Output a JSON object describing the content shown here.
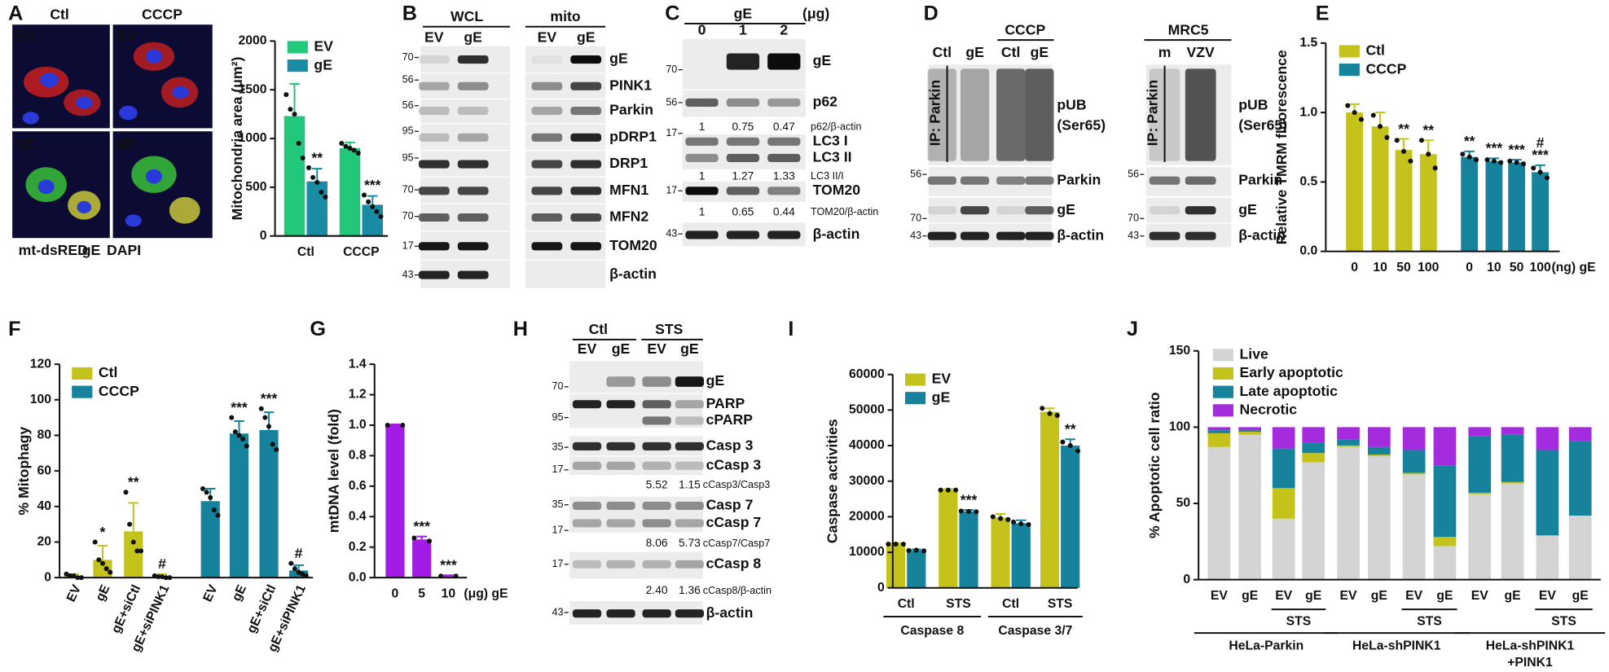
{
  "panel_labels": [
    "A",
    "B",
    "C",
    "D",
    "E",
    "F",
    "G",
    "H",
    "I",
    "J"
  ],
  "micrograph": {
    "columns": [
      "Ctl",
      "CCCP"
    ],
    "tiles": [
      "EV",
      "EV",
      "gE",
      "gE"
    ],
    "stain_legend": [
      "mt-dsRED",
      "gE",
      "DAPI"
    ]
  },
  "chart_data": [
    {
      "type": "bar",
      "ylabel": "Mitochondria area (μm²)",
      "categories": [
        "Ctl",
        "CCCP"
      ],
      "ylim": [
        0,
        2000
      ],
      "yticks": [
        0,
        500,
        1000,
        1500,
        2000
      ],
      "legend": "upper left",
      "series": [
        {
          "name": "EV",
          "color": "#21c77a",
          "values": [
            1230,
            900
          ],
          "errors": [
            330,
            60
          ],
          "points": [
            [
              1450,
              1300,
              1250,
              950,
              800
            ],
            [
              950,
              920,
              900,
              880,
              850
            ]
          ]
        },
        {
          "name": "gE",
          "color": "#1a8ba5",
          "values": [
            560,
            320
          ],
          "errors": [
            130,
            90
          ],
          "points": [
            [
              700,
              600,
              550,
              450,
              400
            ],
            [
              420,
              350,
              300,
              250,
              200
            ]
          ],
          "annotations": [
            "**",
            "***"
          ]
        }
      ]
    },
    {
      "type": "bar",
      "ylabel": "Relative TMRM fluorescence",
      "xlabel": "(ng) gE",
      "categories": [
        "0",
        "10",
        "50",
        "100",
        "0",
        "10",
        "50",
        "100"
      ],
      "ylim": [
        0,
        1.5
      ],
      "yticks": [
        {
          "value": 0,
          "label": "0.0"
        },
        {
          "value": 0.5,
          "label": "0.5"
        },
        {
          "value": 1,
          "label": "1.0"
        },
        {
          "value": 1.5,
          "label": "1.5"
        }
      ],
      "legend": "upper left",
      "series": [
        {
          "name": "Ctl",
          "color": "#c3c31b",
          "values": [
            1.0,
            0.9,
            0.73,
            0.7,
            null,
            null,
            null,
            null
          ],
          "errors": [
            0.06,
            0.1,
            0.08,
            0.1,
            null,
            null,
            null,
            null
          ],
          "points": [
            [
              1.05,
              1.0,
              0.95
            ],
            [
              0.98,
              0.9,
              0.82
            ],
            [
              0.8,
              0.72,
              0.65
            ],
            [
              0.8,
              0.7,
              0.6
            ],
            null,
            null,
            null,
            null
          ],
          "annotations": [
            null,
            null,
            "**",
            "**",
            null,
            null,
            null,
            null
          ]
        },
        {
          "name": "CCCP",
          "color": "#17829b",
          "values": [
            null,
            null,
            null,
            null,
            0.68,
            0.65,
            0.64,
            0.57
          ],
          "errors": [
            null,
            null,
            null,
            null,
            0.04,
            0.02,
            0.02,
            0.05
          ],
          "points": [
            null,
            null,
            null,
            null,
            [
              0.7,
              0.68,
              0.66
            ],
            [
              0.66,
              0.65,
              0.64
            ],
            [
              0.65,
              0.64,
              0.63
            ],
            [
              0.6,
              0.57,
              0.53
            ]
          ],
          "annotations": [
            null,
            null,
            null,
            null,
            "**",
            "***",
            "***",
            [
              "#",
              "***"
            ]
          ]
        }
      ]
    },
    {
      "type": "bar",
      "ylabel": "% Mitophagy",
      "categories": [
        "EV",
        "gE",
        "gE+siCtl",
        "gE+siPINK1",
        "EV",
        "gE",
        "gE+siCtl",
        "gE+siPINK1"
      ],
      "ylim": [
        0,
        120
      ],
      "yticks": [
        0,
        20,
        40,
        60,
        80,
        100,
        120
      ],
      "legend": "upper left",
      "series": [
        {
          "name": "Ctl",
          "color": "#c3c31b",
          "values": [
            1,
            10,
            26,
            1,
            null,
            null,
            null,
            null
          ],
          "errors": [
            1,
            8,
            16,
            1,
            null,
            null,
            null,
            null
          ],
          "points": [
            [
              2,
              1,
              1,
              0,
              0
            ],
            [
              20,
              10,
              8,
              5,
              3
            ],
            [
              48,
              30,
              20,
              15,
              15
            ],
            [
              1,
              0.5,
              0.5,
              0,
              0
            ],
            null,
            null,
            null,
            null
          ],
          "annotations": [
            null,
            "*",
            "**",
            "#",
            null,
            null,
            null,
            null
          ]
        },
        {
          "name": "CCCP",
          "color": "#17829b",
          "values": [
            null,
            null,
            null,
            null,
            43,
            81,
            83,
            4
          ],
          "errors": [
            null,
            null,
            null,
            null,
            7,
            7,
            10,
            3
          ],
          "points": [
            null,
            null,
            null,
            null,
            [
              50,
              48,
              45,
              38,
              35
            ],
            [
              90,
              82,
              80,
              78,
              74
            ],
            [
              95,
              90,
              85,
              75,
              72
            ],
            [
              8,
              5,
              3,
              2,
              1
            ]
          ],
          "annotations": [
            null,
            null,
            null,
            null,
            null,
            "***",
            "***",
            "#"
          ]
        }
      ]
    },
    {
      "type": "bar",
      "ylabel": "mtDNA level (fold)",
      "xlabel": "(μg) gE",
      "categories": [
        "0",
        "5",
        "10"
      ],
      "ylim": [
        0,
        1.4
      ],
      "yticks": [
        {
          "value": 0,
          "label": "0.0"
        },
        {
          "value": 0.2,
          "label": "0.2"
        },
        {
          "value": 0.4,
          "label": "0.4"
        },
        {
          "value": 0.6,
          "label": "0.6"
        },
        {
          "value": 0.8,
          "label": "0.8"
        },
        {
          "value": 1,
          "label": "1.0"
        },
        {
          "value": 1.2,
          "label": "1.2"
        },
        {
          "value": 1.4,
          "label": "1.4"
        }
      ],
      "series": [
        {
          "color": "#a31ce6",
          "values": [
            1.0,
            0.25,
            0.01
          ],
          "errors": [
            0.005,
            0.02,
            0.005
          ],
          "points": [
            [
              1.0,
              1.0
            ],
            [
              0.26,
              0.24
            ],
            [
              0.01,
              0.01
            ]
          ],
          "annotations": [
            null,
            "***",
            "***"
          ]
        }
      ]
    },
    {
      "type": "bar",
      "ylabel": "Caspase activities",
      "categories": [
        "Ctl",
        "STS",
        "Ctl",
        "STS"
      ],
      "groups": [
        "Caspase 8",
        "Caspase 3/7"
      ],
      "ylim": [
        0,
        60000
      ],
      "yticks": [
        0,
        10000,
        20000,
        30000,
        40000,
        50000,
        60000
      ],
      "legend": "upper left",
      "series": [
        {
          "name": "EV",
          "color": "#c3c31b",
          "values": [
            12300,
            27500,
            19800,
            49500
          ],
          "errors": [
            300,
            300,
            1000,
            1000
          ],
          "points": [
            [
              12300,
              12300,
              12300
            ],
            [
              27500,
              27500,
              27500
            ],
            [
              20000,
              19500,
              19200
            ],
            [
              50500,
              49000,
              48500
            ]
          ]
        },
        {
          "name": "gE",
          "color": "#17829b",
          "values": [
            10500,
            21500,
            18200,
            40000
          ],
          "errors": [
            300,
            400,
            800,
            1800
          ],
          "points": [
            [
              10500,
              10600,
              10400
            ],
            [
              21600,
              21500,
              21400
            ],
            [
              18500,
              18000,
              17800
            ],
            [
              41000,
              40000,
              38500
            ]
          ],
          "annotations": [
            null,
            "***",
            null,
            "**"
          ]
        }
      ]
    },
    {
      "type": "stacked_bar",
      "ylabel": "% Apoptotic cell ratio",
      "categories": [
        "EV",
        "gE",
        "EV",
        "gE",
        "EV",
        "gE",
        "EV",
        "gE",
        "EV",
        "gE",
        "EV",
        "gE"
      ],
      "subgroups": [
        "STS",
        "STS",
        "STS"
      ],
      "groups": [
        [
          "HeLa-Parkin"
        ],
        [
          "HeLa-shPINK1"
        ],
        [
          "HeLa-shPINK1",
          "+PINK1"
        ]
      ],
      "ylim": [
        0,
        150
      ],
      "yticks": [
        0,
        50,
        100,
        150
      ],
      "legend": "upper left",
      "series": [
        {
          "name": "Live",
          "color": "#d4d4d4",
          "values": [
            87,
            95,
            40,
            77,
            87,
            81,
            69,
            22,
            56,
            63,
            29,
            42
          ]
        },
        {
          "name": "Early apoptotic",
          "color": "#c3c31b",
          "values": [
            9,
            2,
            20,
            6,
            1,
            1,
            1,
            6,
            1,
            1,
            0,
            0
          ]
        },
        {
          "name": "Late apoptotic",
          "color": "#17829b",
          "values": [
            2,
            1,
            26,
            7,
            4,
            5,
            15,
            47,
            37,
            31,
            56,
            49
          ]
        },
        {
          "name": "Necrotic",
          "color": "#a52bdf",
          "values": [
            2,
            2,
            14,
            10,
            8,
            13,
            15,
            25,
            6,
            5,
            15,
            9
          ]
        }
      ]
    }
  ],
  "blots": {
    "B": {
      "headers": [
        "WCL",
        "mito"
      ],
      "lanes": [
        "EV",
        "gE",
        "EV",
        "gE"
      ],
      "rows": [
        {
          "label": "gE",
          "marker": 70
        },
        {
          "label": "PINK1",
          "marker": 56
        },
        {
          "label": "Parkin",
          "marker": 56
        },
        {
          "label": "pDRP1",
          "marker": 95
        },
        {
          "label": "DRP1",
          "marker": 95
        },
        {
          "label": "MFN1",
          "marker": 70
        },
        {
          "label": "MFN2",
          "marker": 70
        },
        {
          "label": "TOM20",
          "marker": 17
        },
        {
          "label": "β-actin",
          "marker": 43
        }
      ]
    },
    "C": {
      "header": "gE",
      "unit": "(μg)",
      "lanes": [
        "0",
        "1",
        "2"
      ],
      "rows": [
        {
          "label": "gE",
          "marker": 70
        },
        {
          "label": "p62",
          "marker": 56,
          "quant": [
            "1",
            "0.75",
            "0.47"
          ],
          "quant_label": "p62/β-actin"
        },
        {
          "label": "LC3 I",
          "marker": 17
        },
        {
          "label": "LC3 II",
          "quant": [
            "1",
            "1.27",
            "1.33"
          ],
          "quant_label": "LC3 II/I"
        },
        {
          "label": "TOM20",
          "marker": 17,
          "quant": [
            "1",
            "0.65",
            "0.44"
          ],
          "quant_label": "TOM20/β-actin"
        },
        {
          "label": "β-actin",
          "marker": 43
        }
      ]
    },
    "D_left": {
      "header": "CCCP",
      "ip": "IP: Parkin",
      "lanes": [
        "Ctl",
        "gE",
        "Ctl",
        "gE"
      ],
      "rows": [
        {
          "label": [
            "pUB",
            "(Ser65)"
          ]
        },
        {
          "label": "Parkin",
          "marker": 56
        },
        {
          "label": "gE",
          "marker": 70
        },
        {
          "label": "β-actin",
          "marker": 43
        }
      ]
    },
    "D_right": {
      "header": "MRC5",
      "ip": "IP: Parkin",
      "lanes": [
        "m",
        "VZV"
      ],
      "rows": [
        {
          "label": [
            "pUB",
            "(Ser65)"
          ]
        },
        {
          "label": "Parkin",
          "marker": 56
        },
        {
          "label": "gE",
          "marker": 70
        },
        {
          "label": "β-actin",
          "marker": 43
        }
      ]
    },
    "H": {
      "headers": [
        "Ctl",
        "STS"
      ],
      "lanes": [
        "EV",
        "gE",
        "EV",
        "gE"
      ],
      "rows": [
        {
          "label": "gE",
          "marker": 70
        },
        {
          "label": "PARP",
          "marker": 95
        },
        {
          "label": "cPARP"
        },
        {
          "label": "Casp 3",
          "marker": 35
        },
        {
          "label": "cCasp 3",
          "marker": 17,
          "quant": [
            "5.52",
            "1.15"
          ],
          "quant_label": "cCasp3/Casp3"
        },
        {
          "label": "Casp 7",
          "marker": 35
        },
        {
          "label": "cCasp 7",
          "marker": 17,
          "quant": [
            "8.06",
            "5.73"
          ],
          "quant_label": "cCasp7/Casp7"
        },
        {
          "label": "cCasp 8",
          "marker": 17,
          "quant": [
            "2.40",
            "1.36"
          ],
          "quant_label": "cCasp8/β-actin"
        },
        {
          "label": "β-actin",
          "marker": 43
        }
      ]
    }
  }
}
